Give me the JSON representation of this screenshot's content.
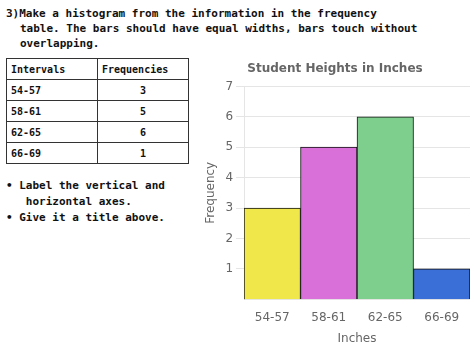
{
  "chart_data": {
    "type": "bar",
    "title": "Student Heights in Inches",
    "x_label": "Inches",
    "y_label": "Frequency",
    "categories": [
      "54-57",
      "58-61",
      "62-65",
      "66-69"
    ],
    "values": [
      3,
      5,
      6,
      1
    ],
    "colors": [
      "#f0e84a",
      "#d970d9",
      "#7ecf8e",
      "#3a6fd8"
    ],
    "ylim": [
      0,
      7
    ],
    "yticks": [
      1,
      2,
      3,
      4,
      5,
      6,
      7
    ],
    "grid": true,
    "annotations": [
      "3)Make a histogram from the information in the frequency",
      "table. The bars should have equal widths, bars touch without",
      "overlapping.",
      "Intervals",
      "Frequencies",
      "54-57",
      "3",
      "58-61",
      "5",
      "62-65",
      "6",
      "66-69",
      "1",
      "• Label the vertical and",
      "   horizontal axes.",
      "• Give it a title above."
    ]
  }
}
